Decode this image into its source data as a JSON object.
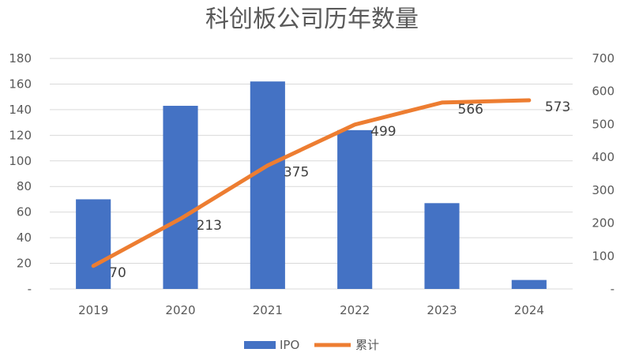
{
  "chart_data": {
    "type": "bar",
    "title": "科创板公司历年数量",
    "categories": [
      "2019",
      "2020",
      "2021",
      "2022",
      "2023",
      "2024"
    ],
    "series": [
      {
        "name": "IPO",
        "type": "bar",
        "axis": "left",
        "color": "#4472C4",
        "values": [
          70,
          143,
          162,
          124,
          67,
          7
        ]
      },
      {
        "name": "累计",
        "type": "line",
        "axis": "right",
        "color": "#ED7D31",
        "values": [
          70,
          213,
          375,
          499,
          566,
          573
        ],
        "labels": [
          "70",
          "213",
          "375",
          "499",
          "566",
          "573"
        ]
      }
    ],
    "y_left": {
      "min": 0,
      "max": 180,
      "step": 20,
      "tick_labels": [
        "-",
        "20",
        "40",
        "60",
        "80",
        "100",
        "120",
        "140",
        "160",
        "180"
      ]
    },
    "y_right": {
      "min": 0,
      "max": 700,
      "step": 100,
      "tick_labels": [
        "-",
        "100",
        "200",
        "300",
        "400",
        "500",
        "600",
        "700"
      ]
    },
    "grid": true,
    "legend_position": "bottom"
  }
}
